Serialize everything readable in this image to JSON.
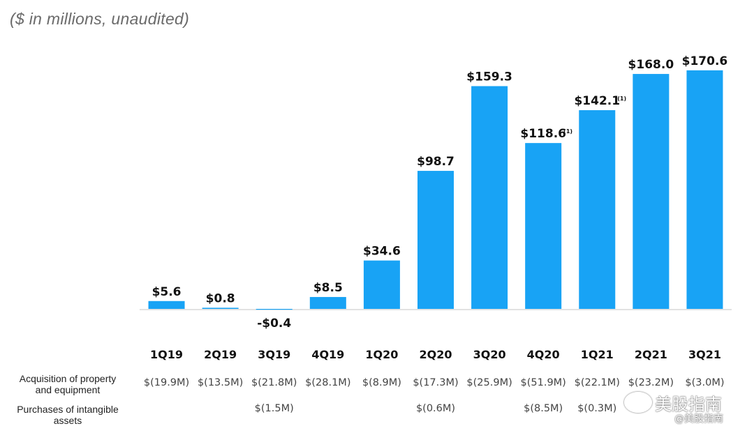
{
  "subtitle": "($ in millions,  unaudited)",
  "chart_data": {
    "type": "bar",
    "title": "",
    "subtitle": "($ in millions,  unaudited)",
    "xlabel": "",
    "ylabel": "",
    "grid": false,
    "categories": [
      "1Q19",
      "2Q19",
      "3Q19",
      "4Q19",
      "1Q20",
      "2Q20",
      "3Q20",
      "4Q20",
      "1Q21",
      "2Q21",
      "3Q21"
    ],
    "values": [
      5.6,
      0.8,
      -0.4,
      8.5,
      34.6,
      98.7,
      159.3,
      118.6,
      142.1,
      168.0,
      170.6
    ],
    "data_labels": [
      "$5.6",
      "$0.8",
      "-$0.4",
      "$8.5",
      "$34.6",
      "$98.7",
      "$159.3",
      "$118.6",
      "$142.1",
      "$168.0",
      "$170.6"
    ],
    "notes": [
      "",
      "",
      "",
      "",
      "",
      "",
      "",
      "(1)",
      "(1)",
      "",
      ""
    ],
    "ylim": [
      -10,
      180
    ],
    "bar_color": "#18a3f5"
  },
  "table": {
    "rows": [
      {
        "label_lines": [
          "Acquisition of property",
          "and equipment"
        ],
        "values": [
          "$(19.9M)",
          "$(13.5M)",
          "$(21.8M)",
          "$(28.1M)",
          "$(8.9M)",
          "$(17.3M)",
          "$(25.9M)",
          "$(51.9M)",
          "$(22.1M)",
          "$(23.2M)",
          "$(3.0M)"
        ]
      },
      {
        "label_lines": [
          "Purchases of intangible",
          "assets"
        ],
        "values": [
          "",
          "",
          "$(1.5M)",
          "",
          "",
          "$(0.6M)",
          "",
          "$(8.5M)",
          "$(0.3M)",
          "",
          ""
        ]
      }
    ]
  },
  "watermark": {
    "main": "美股指南",
    "sub": "@美股指南"
  }
}
